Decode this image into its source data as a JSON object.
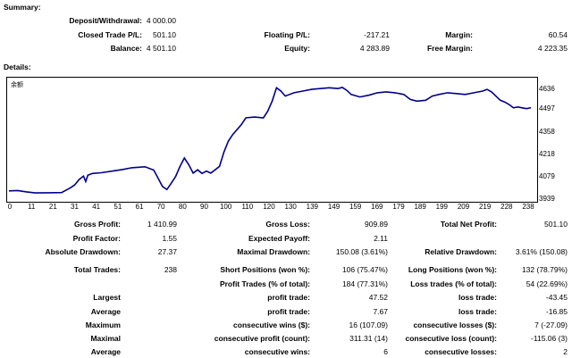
{
  "summary": {
    "title": "Summary:",
    "deposit_label": "Deposit/Withdrawal:",
    "deposit_value": "4 000.00",
    "closed_label": "Closed Trade P/L:",
    "closed_value": "501.10",
    "balance_label": "Balance:",
    "balance_value": "4 501.10",
    "floating_label": "Floating P/L:",
    "floating_value": "-217.21",
    "equity_label": "Equity:",
    "equity_value": "4 283.89",
    "margin_label": "Margin:",
    "margin_value": "60.54",
    "free_margin_label": "Free Margin:",
    "free_margin_value": "4 223.35"
  },
  "details": {
    "title": "Details:",
    "gross_profit_label": "Gross Profit:",
    "gross_profit_value": "1 410.99",
    "gross_loss_label": "Gross Loss:",
    "gross_loss_value": "909.89",
    "net_profit_label": "Total Net Profit:",
    "net_profit_value": "501.10",
    "profit_factor_label": "Profit Factor:",
    "profit_factor_value": "1.55",
    "expected_payoff_label": "Expected Payoff:",
    "expected_payoff_value": "2.11",
    "abs_dd_label": "Absolute Drawdown:",
    "abs_dd_value": "27.37",
    "max_dd_label": "Maximal Drawdown:",
    "max_dd_value": "150.08 (3.61%)",
    "rel_dd_label": "Relative Drawdown:",
    "rel_dd_value": "3.61% (150.08)",
    "total_trades_label": "Total Trades:",
    "total_trades_value": "238",
    "short_label": "Short Positions (won %):",
    "short_value": "106 (75.47%)",
    "long_label": "Long Positions (won %):",
    "long_value": "132 (78.79%)",
    "profit_trades_label": "Profit Trades (% of total):",
    "profit_trades_value": "184 (77.31%)",
    "loss_trades_label": "Loss trades (% of total):",
    "loss_trades_value": "54 (22.69%)",
    "largest_label": "Largest",
    "largest_profit_label": "profit trade:",
    "largest_profit_value": "47.52",
    "largest_loss_label": "loss trade:",
    "largest_loss_value": "-43.45",
    "average_label": "Average",
    "average_profit_label": "profit trade:",
    "average_profit_value": "7.67",
    "average_loss_label": "loss trade:",
    "average_loss_value": "-16.85",
    "maximum_label": "Maximum",
    "max_cons_wins_label": "consecutive wins ($):",
    "max_cons_wins_value": "16 (107.09)",
    "max_cons_losses_label": "consecutive losses ($):",
    "max_cons_losses_value": "7 (-27.09)",
    "maximal_label": "Maximal",
    "max_cons_profit_label": "consecutive profit (count):",
    "max_cons_profit_value": "311.31 (14)",
    "max_cons_loss_label": "consecutive loss (count):",
    "max_cons_loss_value": "-115.06 (3)",
    "average2_label": "Average",
    "avg_cons_wins_label": "consecutive wins:",
    "avg_cons_wins_value": "6",
    "avg_cons_losses_label": "consecutive losses:",
    "avg_cons_losses_value": "2"
  },
  "chart_data": {
    "type": "line",
    "legend": "余额",
    "line_color": "#00008b",
    "grid": false,
    "x_ticks": [
      "0",
      "11",
      "21",
      "31",
      "41",
      "51",
      "61",
      "70",
      "80",
      "90",
      "100",
      "110",
      "120",
      "130",
      "139",
      "149",
      "159",
      "169",
      "179",
      "189",
      "199",
      "209",
      "219",
      "228",
      "238"
    ],
    "y_ticks": [
      "4636",
      "4497",
      "4358",
      "4218",
      "4079",
      "3939"
    ],
    "ylim": [
      3939,
      4680
    ],
    "xlim": [
      0,
      240
    ],
    "series": [
      {
        "values": [
          [
            0,
            4004
          ],
          [
            4,
            4006
          ],
          [
            8,
            3998
          ],
          [
            12,
            3992
          ],
          [
            18,
            3993
          ],
          [
            24,
            3994
          ],
          [
            28,
            4022
          ],
          [
            30,
            4040
          ],
          [
            32,
            4072
          ],
          [
            34,
            4092
          ],
          [
            35,
            4060
          ],
          [
            36,
            4098
          ],
          [
            38,
            4108
          ],
          [
            42,
            4112
          ],
          [
            48,
            4124
          ],
          [
            52,
            4132
          ],
          [
            56,
            4142
          ],
          [
            62,
            4148
          ],
          [
            66,
            4128
          ],
          [
            68,
            4080
          ],
          [
            70,
            4030
          ],
          [
            72,
            4012
          ],
          [
            74,
            4050
          ],
          [
            76,
            4090
          ],
          [
            78,
            4150
          ],
          [
            80,
            4200
          ],
          [
            82,
            4160
          ],
          [
            84,
            4110
          ],
          [
            86,
            4130
          ],
          [
            88,
            4108
          ],
          [
            90,
            4122
          ],
          [
            92,
            4110
          ],
          [
            94,
            4130
          ],
          [
            96,
            4150
          ],
          [
            98,
            4235
          ],
          [
            100,
            4300
          ],
          [
            102,
            4340
          ],
          [
            104,
            4370
          ],
          [
            106,
            4400
          ],
          [
            108,
            4440
          ],
          [
            112,
            4445
          ],
          [
            116,
            4440
          ],
          [
            118,
            4480
          ],
          [
            120,
            4540
          ],
          [
            122,
            4620
          ],
          [
            124,
            4600
          ],
          [
            126,
            4570
          ],
          [
            130,
            4590
          ],
          [
            134,
            4600
          ],
          [
            138,
            4610
          ],
          [
            142,
            4615
          ],
          [
            146,
            4620
          ],
          [
            150,
            4615
          ],
          [
            152,
            4622
          ],
          [
            154,
            4605
          ],
          [
            156,
            4580
          ],
          [
            160,
            4565
          ],
          [
            164,
            4575
          ],
          [
            168,
            4590
          ],
          [
            172,
            4595
          ],
          [
            176,
            4590
          ],
          [
            180,
            4580
          ],
          [
            183,
            4550
          ],
          [
            186,
            4540
          ],
          [
            190,
            4545
          ],
          [
            193,
            4570
          ],
          [
            196,
            4580
          ],
          [
            200,
            4590
          ],
          [
            204,
            4585
          ],
          [
            208,
            4580
          ],
          [
            212,
            4590
          ],
          [
            216,
            4600
          ],
          [
            218,
            4610
          ],
          [
            220,
            4595
          ],
          [
            222,
            4570
          ],
          [
            224,
            4545
          ],
          [
            226,
            4535
          ],
          [
            228,
            4520
          ],
          [
            230,
            4500
          ],
          [
            232,
            4505
          ],
          [
            234,
            4500
          ],
          [
            236,
            4495
          ],
          [
            238,
            4501
          ]
        ]
      }
    ]
  }
}
